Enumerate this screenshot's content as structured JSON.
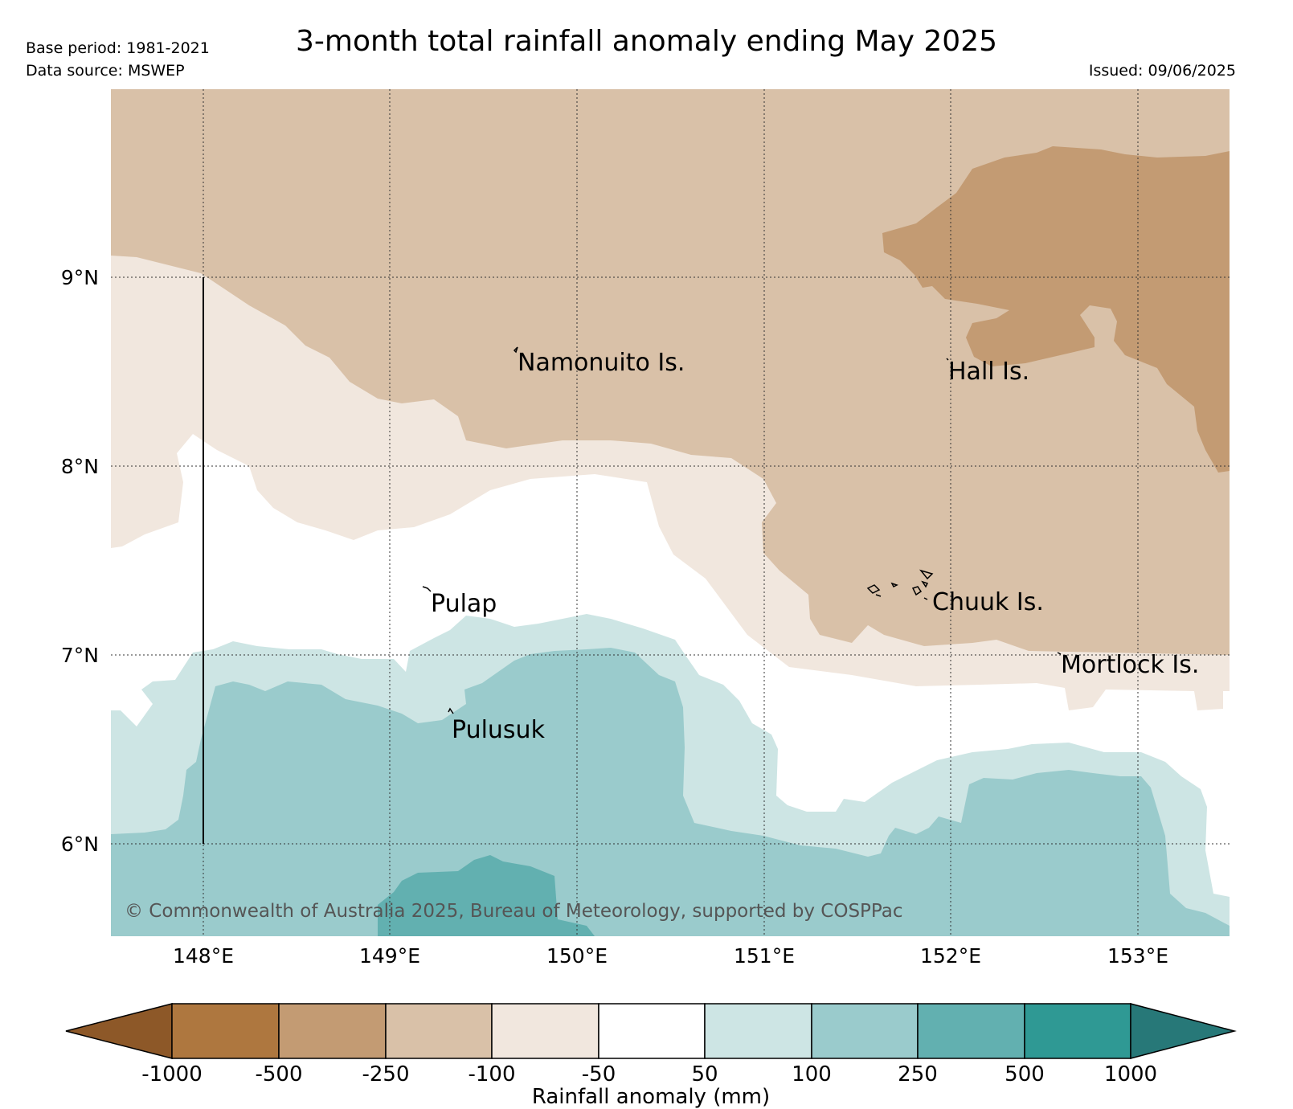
{
  "header": {
    "base_period": "Base period: 1981-2021",
    "data_source": "Data source: MSWEP",
    "title": "3-month total rainfall anomaly ending May 2025",
    "issued": "Issued: 09/06/2025"
  },
  "map": {
    "lat_labels": [
      "9°N",
      "8°N",
      "7°N",
      "6°N"
    ],
    "lon_labels": [
      "148°E",
      "149°E",
      "150°E",
      "151°E",
      "152°E",
      "153°E"
    ],
    "places": [
      {
        "name": "Namonuito Is.",
        "lon": 149.68,
        "lat": 8.55
      },
      {
        "name": "Hall Is.",
        "lon": 151.98,
        "lat": 8.5
      },
      {
        "name": "Pulap",
        "lon": 149.3,
        "lat": 7.3
      },
      {
        "name": "Chuuk Is.",
        "lon": 151.85,
        "lat": 7.32
      },
      {
        "name": "Mortlock Is.",
        "lon": 152.6,
        "lat": 6.9
      },
      {
        "name": "Pulusuk",
        "lon": 149.3,
        "lat": 6.62
      }
    ],
    "copyright": "© Commonwealth of Australia 2025, Bureau of Meteorology, supported by COSPPac"
  },
  "colorbar": {
    "label": "Rainfall anomaly (mm)",
    "ticks": [
      "-1000",
      "-500",
      "-250",
      "-100",
      "-50",
      "50",
      "100",
      "250",
      "500",
      "1000"
    ],
    "colors": {
      "lt_-1000": "#8d5828",
      "-1000_-500": "#ae773f",
      "-500_-250": "#c39b73",
      "-250_-100": "#d9c1a8",
      "-100_-50": "#f1e7de",
      "-50_50": "#ffffff",
      "50_100": "#cde5e4",
      "100_250": "#9acbcc",
      "250_500": "#62b0b0",
      "500_1000": "#2f9994",
      "gt_1000": "#277878"
    }
  }
}
